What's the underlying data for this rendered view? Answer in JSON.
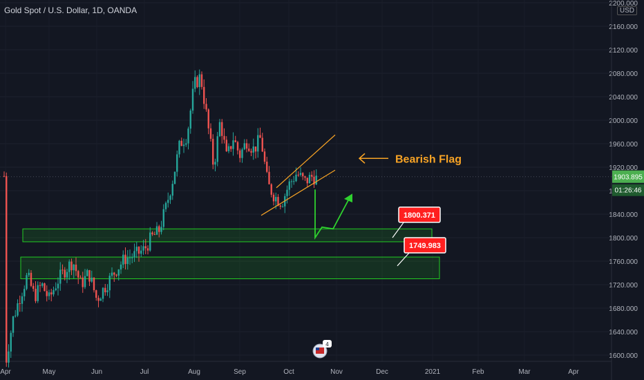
{
  "header": {
    "title": "Gold Spot / U.S. Dollar, 1D, OANDA",
    "currency": "USD"
  },
  "colors": {
    "up": "#26a69a",
    "down": "#ef5350",
    "accent": "#f7a325",
    "zone": "#22cc22",
    "label": "#ff1f1f",
    "price_tag": "#4caf50"
  },
  "chart_data": {
    "type": "candlestick",
    "title": "Gold Spot / U.S. Dollar, 1D, OANDA",
    "ylim": [
      1565,
      2205
    ],
    "y_ticks": [
      1600,
      1640,
      1680,
      1720,
      1760,
      1800,
      1840,
      1880,
      1920,
      1960,
      2000,
      2040,
      2080,
      2120,
      2160,
      2200
    ],
    "x_labels": [
      "Apr",
      "May",
      "Jun",
      "Jul",
      "Aug",
      "Sep",
      "Oct",
      "Nov",
      "Dec",
      "2021",
      "Feb",
      "Mar",
      "Apr"
    ],
    "current_price": "1903.895",
    "countdown": "01:26:46",
    "price_path": [
      [
        "Apr",
        1585
      ],
      [
        "Apr",
        1660
      ],
      [
        "Apr",
        1700
      ],
      [
        "Apr",
        1735
      ],
      [
        "Apr",
        1700
      ],
      [
        "Apr",
        1720
      ],
      [
        "May",
        1695
      ],
      [
        "May",
        1725
      ],
      [
        "May",
        1745
      ],
      [
        "May",
        1760
      ],
      [
        "May",
        1720
      ],
      [
        "May",
        1740
      ],
      [
        "Jun",
        1695
      ],
      [
        "Jun",
        1720
      ],
      [
        "Jun",
        1745
      ],
      [
        "Jun",
        1765
      ],
      [
        "Jun",
        1770
      ],
      [
        "Jul",
        1780
      ],
      [
        "Jul",
        1800
      ],
      [
        "Jul",
        1810
      ],
      [
        "Jul",
        1850
      ],
      [
        "Jul",
        1900
      ],
      [
        "Jul",
        1960
      ],
      [
        "Jul",
        1975
      ],
      [
        "Aug",
        2060
      ],
      [
        "Aug",
        2075
      ],
      [
        "Aug",
        2000
      ],
      [
        "Aug",
        1920
      ],
      [
        "Aug",
        2000
      ],
      [
        "Aug",
        1935
      ],
      [
        "Aug",
        1970
      ],
      [
        "Sep",
        1940
      ],
      [
        "Sep",
        1965
      ],
      [
        "Sep",
        1950
      ],
      [
        "Sep",
        1970
      ],
      [
        "Sep",
        1890
      ],
      [
        "Sep",
        1870
      ],
      [
        "Sep",
        1860
      ],
      [
        "Oct",
        1890
      ],
      [
        "Oct",
        1910
      ],
      [
        "Oct",
        1895
      ],
      [
        "Oct",
        1905
      ],
      [
        "Oct",
        1895
      ],
      [
        "Oct",
        1905
      ]
    ],
    "annotations": {
      "pattern_label": "Bearish Flag",
      "zone_labels": [
        "1800.371",
        "1749.983"
      ],
      "zones": [
        {
          "top": 1815,
          "bottom": 1793
        },
        {
          "top": 1767,
          "bottom": 1730
        }
      ],
      "badge_count": "4"
    }
  }
}
